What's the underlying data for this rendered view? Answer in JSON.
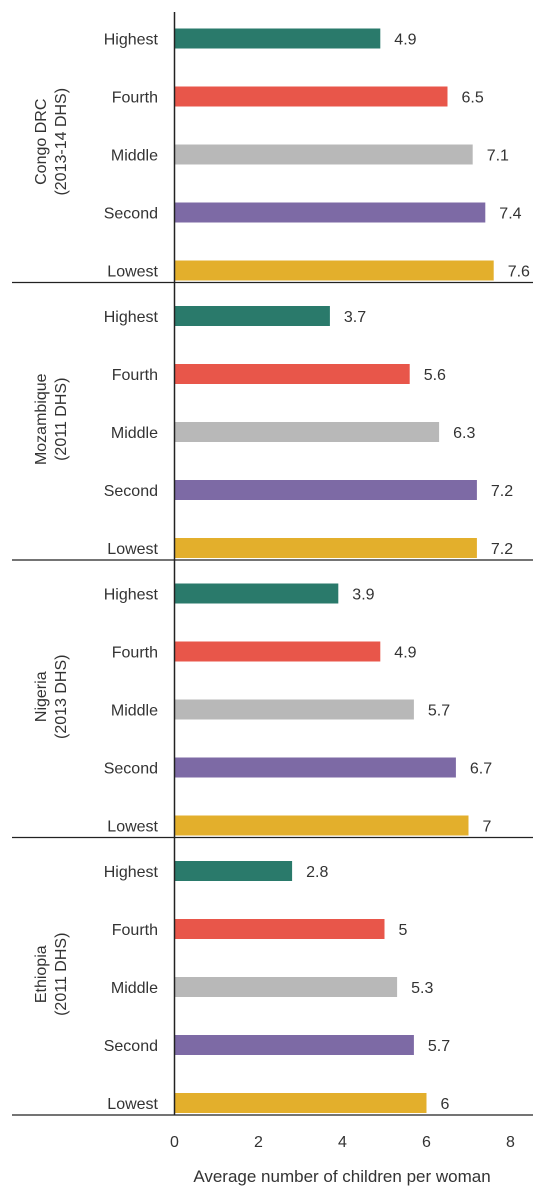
{
  "chart_data": {
    "type": "bar",
    "orientation": "horizontal",
    "xlabel": "Average number of children per woman",
    "xlim": [
      0,
      8
    ],
    "xticks": [
      "0",
      "2",
      "4",
      "6",
      "8"
    ],
    "grid": false,
    "legend": "none",
    "categories": [
      "Highest",
      "Fourth",
      "Middle",
      "Second",
      "Lowest"
    ],
    "colors": {
      "Highest": "#2a7a6b",
      "Fourth": "#e8564a",
      "Middle": "#b8b8b8",
      "Second": "#7d6aa5",
      "Lowest": "#e3af2c"
    },
    "groups": [
      {
        "line1": "Congo DRC",
        "line2": "(2013-14 DHS)",
        "values": [
          4.9,
          6.5,
          7.1,
          7.4,
          7.6
        ],
        "labels": [
          "4.9",
          "6.5",
          "7.1",
          "7.4",
          "7.6"
        ]
      },
      {
        "line1": "Mozambique",
        "line2": "(2011 DHS)",
        "values": [
          3.7,
          5.6,
          6.3,
          7.2,
          7.2
        ],
        "labels": [
          "3.7",
          "5.6",
          "6.3",
          "7.2",
          "7.2"
        ]
      },
      {
        "line1": "Nigeria",
        "line2": "(2013 DHS)",
        "values": [
          3.9,
          4.9,
          5.7,
          6.7,
          7.0
        ],
        "labels": [
          "3.9",
          "4.9",
          "5.7",
          "6.7",
          "7"
        ]
      },
      {
        "line1": "Ethiopia",
        "line2": "(2011 DHS)",
        "values": [
          2.8,
          5.0,
          5.3,
          5.7,
          6.0
        ],
        "labels": [
          "2.8",
          "5",
          "5.3",
          "5.7",
          "6"
        ]
      }
    ]
  }
}
